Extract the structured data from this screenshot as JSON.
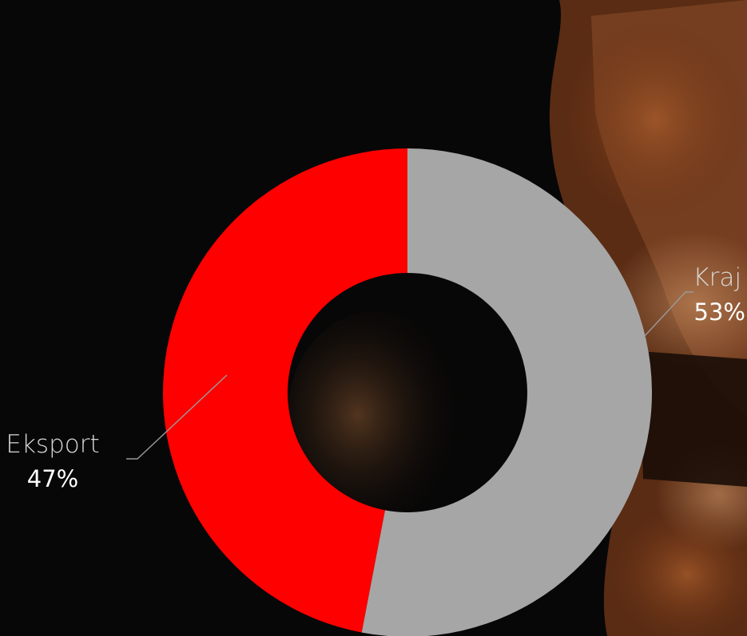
{
  "chart_data": {
    "type": "pie",
    "variant": "donut",
    "slices": [
      {
        "label": "Kraj",
        "value": 53,
        "value_label": "53%",
        "color": "#a6a6a6"
      },
      {
        "label": "Eksport",
        "value": 47,
        "value_label": "47%",
        "color": "#ff0000"
      }
    ],
    "start_angle": "12 o'clock",
    "direction": "clockwise",
    "leader_line_color": "#9a9a9a"
  },
  "background": {
    "base_color": "#070707",
    "photo_tone": "#8a4a25"
  }
}
